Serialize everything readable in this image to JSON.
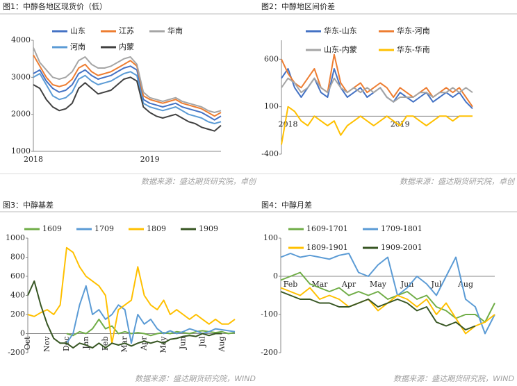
{
  "chart_data": [
    {
      "type": "line",
      "title": "图1：中醇各地区现货价（低）",
      "source": "数据来源：盛达期货研究院，卓创",
      "categories": [
        "2018",
        null,
        null,
        null,
        null,
        null,
        null,
        null,
        null,
        null,
        null,
        null,
        null,
        null,
        null,
        null,
        null,
        null,
        "2019",
        null,
        null,
        null,
        null,
        null,
        null,
        null,
        null,
        null,
        null,
        null
      ],
      "ylim": [
        1000,
        4000
      ],
      "yticks": [
        1000,
        2000,
        3000,
        4000
      ],
      "series": [
        {
          "name": "山东",
          "color": "#4472c4",
          "values": [
            3100,
            3200,
            2900,
            2700,
            2600,
            2650,
            2800,
            3100,
            3200,
            3050,
            2950,
            3000,
            3050,
            3150,
            3250,
            3300,
            3200,
            2400,
            2300,
            2250,
            2200,
            2250,
            2300,
            2200,
            2150,
            2100,
            2050,
            1950,
            1850,
            1950
          ]
        },
        {
          "name": "江苏",
          "color": "#ed7d31",
          "values": [
            3600,
            3300,
            3000,
            2800,
            2750,
            2800,
            2950,
            3250,
            3350,
            3150,
            3050,
            3100,
            3150,
            3250,
            3350,
            3450,
            3300,
            2500,
            2400,
            2350,
            2300,
            2350,
            2400,
            2300,
            2250,
            2200,
            2150,
            2050,
            1950,
            2050
          ]
        },
        {
          "name": "华南",
          "color": "#a5a5a5",
          "values": [
            3800,
            3400,
            3200,
            3000,
            2950,
            3000,
            3150,
            3450,
            3550,
            3350,
            3250,
            3250,
            3300,
            3400,
            3500,
            3550,
            3350,
            2600,
            2450,
            2400,
            2350,
            2400,
            2450,
            2350,
            2300,
            2250,
            2200,
            2100,
            2050,
            2100
          ]
        },
        {
          "name": "河南",
          "color": "#5b9bd5",
          "values": [
            3000,
            3100,
            2800,
            2500,
            2400,
            2450,
            2600,
            2950,
            3050,
            2900,
            2800,
            2850,
            2900,
            3000,
            3100,
            3150,
            3050,
            2300,
            2200,
            2150,
            2100,
            2150,
            2200,
            2100,
            2000,
            1950,
            1900,
            1800,
            1750,
            1800
          ]
        },
        {
          "name": "内蒙",
          "color": "#404040",
          "values": [
            2800,
            2700,
            2400,
            2200,
            2100,
            2150,
            2300,
            2700,
            2850,
            2700,
            2550,
            2600,
            2650,
            2800,
            2950,
            3000,
            2900,
            2200,
            2050,
            1950,
            1900,
            1950,
            2000,
            1900,
            1800,
            1750,
            1650,
            1600,
            1550,
            1700
          ]
        }
      ]
    },
    {
      "type": "line",
      "title": "图2：中醇地区间价差",
      "source": "数据来源：盛达期货研究院，卓创",
      "categories": [
        null,
        "2018",
        null,
        null,
        null,
        null,
        null,
        null,
        null,
        null,
        null,
        null,
        null,
        null,
        null,
        null,
        null,
        null,
        "2019",
        null,
        null,
        null,
        null,
        null,
        null,
        null,
        null,
        null,
        null,
        null
      ],
      "ylim": [
        -400,
        800
      ],
      "yticks": [
        -400,
        100,
        600
      ],
      "series": [
        {
          "name": "华东-山东",
          "color": "#4472c4",
          "values": [
            400,
            500,
            300,
            200,
            300,
            400,
            250,
            200,
            500,
            300,
            200,
            250,
            300,
            200,
            250,
            300,
            200,
            150,
            250,
            200,
            150,
            200,
            250,
            150,
            200,
            250,
            200,
            250,
            150,
            80
          ]
        },
        {
          "name": "华东-河南",
          "color": "#ed7d31",
          "values": [
            600,
            450,
            350,
            300,
            400,
            500,
            300,
            250,
            650,
            350,
            250,
            300,
            350,
            250,
            300,
            350,
            300,
            200,
            300,
            250,
            200,
            250,
            300,
            200,
            250,
            300,
            250,
            300,
            200,
            100
          ]
        },
        {
          "name": "山东-内蒙",
          "color": "#a5a5a5",
          "values": [
            300,
            400,
            350,
            250,
            300,
            400,
            300,
            250,
            400,
            300,
            250,
            300,
            250,
            300,
            250,
            300,
            200,
            150,
            200,
            200,
            200,
            250,
            250,
            200,
            250,
            250,
            300,
            250,
            300,
            250
          ]
        },
        {
          "name": "华东-华南",
          "color": "#ffc000",
          "values": [
            -300,
            100,
            50,
            -50,
            -100,
            0,
            -50,
            -100,
            -50,
            -200,
            -100,
            -50,
            0,
            -50,
            -100,
            -50,
            0,
            -50,
            -100,
            0,
            0,
            -50,
            -100,
            -50,
            0,
            0,
            -50,
            0,
            0,
            0
          ]
        }
      ]
    },
    {
      "type": "line",
      "title": "图3：中醇基差",
      "source": "数据来源：盛达期货研究院，WIND",
      "categories": [
        "Oct",
        null,
        null,
        "Nov",
        null,
        null,
        "Dec",
        null,
        null,
        "Jan",
        null,
        null,
        "Feb",
        null,
        null,
        "Mar",
        null,
        null,
        "Apr",
        null,
        null,
        "May",
        null,
        null,
        "Jun",
        null,
        null,
        "Jul",
        null,
        null,
        "Aug",
        null,
        null
      ],
      "ylim": [
        -200,
        1000
      ],
      "yticks": [
        -200,
        0,
        200,
        400,
        600,
        800,
        1000
      ],
      "series": [
        {
          "name": "1609",
          "color": "#70ad47",
          "values": [
            null,
            null,
            null,
            null,
            null,
            null,
            0,
            -20,
            20,
            0,
            50,
            150,
            50,
            80,
            0,
            20,
            0,
            10,
            0,
            -20,
            0,
            10,
            0,
            20,
            10,
            0,
            20,
            30,
            20,
            10,
            20,
            0,
            10
          ]
        },
        {
          "name": "1709",
          "color": "#5b9bd5",
          "values": [
            null,
            null,
            null,
            null,
            null,
            null,
            -100,
            0,
            300,
            500,
            200,
            250,
            150,
            200,
            300,
            250,
            -100,
            200,
            100,
            150,
            50,
            0,
            30,
            0,
            20,
            50,
            30,
            0,
            20,
            50,
            40,
            30,
            20
          ]
        },
        {
          "name": "1809",
          "color": "#ffc000",
          "values": [
            200,
            180,
            220,
            250,
            200,
            300,
            900,
            850,
            700,
            600,
            550,
            500,
            400,
            -100,
            250,
            300,
            350,
            700,
            400,
            300,
            250,
            350,
            200,
            250,
            200,
            150,
            200,
            150,
            100,
            150,
            100,
            100,
            150
          ]
        },
        {
          "name": "1909",
          "color": "#375623",
          "values": [
            400,
            550,
            300,
            100,
            -50,
            -100,
            -100,
            -150,
            -100,
            -120,
            -150,
            -100,
            -150,
            -100,
            -120,
            -100,
            -130,
            -100,
            -80,
            -100,
            -80,
            -100,
            -60,
            -50,
            -30,
            -20,
            -30,
            0,
            -20,
            0,
            0,
            null,
            null
          ]
        }
      ]
    },
    {
      "type": "line",
      "title": "图4：中醇月差",
      "source": "数据来源：盛达期货研究院，WIND",
      "categories": [
        null,
        "Feb",
        null,
        null,
        "Mar",
        null,
        null,
        "Apr",
        null,
        null,
        "May",
        null,
        null,
        "Jun",
        null,
        null,
        "Jul",
        null,
        null,
        "Aug",
        null,
        null,
        null
      ],
      "ylim": [
        -200,
        100
      ],
      "yticks": [
        -200,
        -100,
        0,
        100
      ],
      "series": [
        {
          "name": "1609-1701",
          "color": "#70ad47",
          "values": [
            -10,
            0,
            10,
            -20,
            -30,
            -40,
            -30,
            -50,
            -40,
            -50,
            -40,
            -60,
            -50,
            -40,
            -60,
            -50,
            -80,
            -90,
            -110,
            -100,
            -100,
            -120,
            -70
          ]
        },
        {
          "name": "1709-1801",
          "color": "#5b9bd5",
          "values": [
            50,
            60,
            50,
            55,
            50,
            45,
            55,
            60,
            10,
            0,
            30,
            50,
            -50,
            -30,
            0,
            -20,
            -50,
            0,
            50,
            -60,
            -80,
            -150,
            -100
          ]
        },
        {
          "name": "1809-1901",
          "color": "#ffc000",
          "values": [
            -30,
            -40,
            -50,
            -30,
            -60,
            -50,
            -60,
            -80,
            -70,
            -60,
            -90,
            -70,
            -50,
            -60,
            -80,
            -60,
            -100,
            -70,
            -110,
            -150,
            -130,
            -120,
            -100
          ]
        },
        {
          "name": "1909-2001",
          "color": "#375623",
          "values": [
            -40,
            -50,
            -60,
            -60,
            -70,
            -70,
            -80,
            -80,
            -70,
            -60,
            -80,
            -70,
            -60,
            -70,
            -90,
            -80,
            -120,
            -130,
            -120,
            -140,
            -130,
            null,
            null
          ]
        }
      ]
    }
  ]
}
